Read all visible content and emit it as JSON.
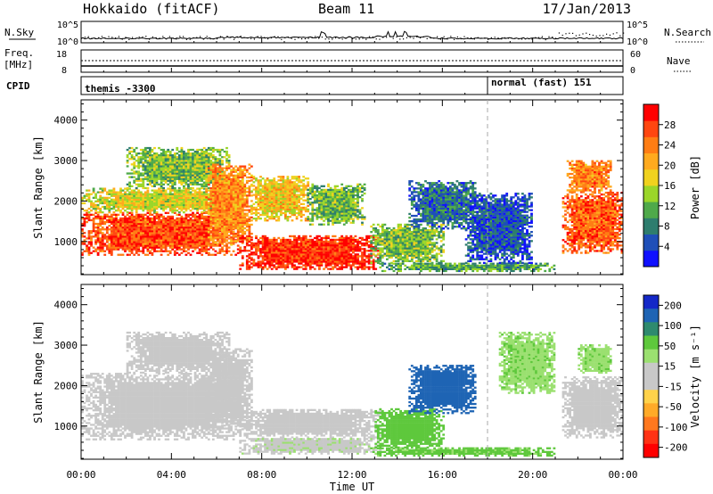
{
  "header": {
    "radar": "Hokkaido (fitACF)",
    "beam": "Beam 11",
    "date": "17/Jan/2013"
  },
  "strips": {
    "noise_left_label": "N.Sky",
    "noise_left_ticks": [
      "10^5",
      "10^0"
    ],
    "noise_right_label": "N.Search",
    "noise_right_ticks": [
      "10^5",
      "10^0"
    ],
    "freq_label_1": "Freq.",
    "freq_label_2": "[MHz]",
    "freq_ticks": [
      "18",
      "8"
    ],
    "nave_label": "Nave",
    "nave_ticks": [
      "60",
      "0"
    ],
    "cpid_label": "CPID",
    "cpid_entries": [
      {
        "text": "themis -3300",
        "hour": 0.0
      },
      {
        "text": "normal (fast) 151",
        "hour": 18.0
      }
    ]
  },
  "axes": {
    "x_label": "Time UT",
    "x_ticks": [
      "00:00",
      "04:00",
      "08:00",
      "12:00",
      "16:00",
      "20:00",
      "00:00"
    ],
    "y_label": "Slant Range [km]",
    "y_ticks": [
      "1000",
      "2000",
      "3000",
      "4000"
    ]
  },
  "colorbars": {
    "power": {
      "label": "Power [dB]",
      "ticks": [
        "4",
        "8",
        "12",
        "16",
        "20",
        "24",
        "28"
      ],
      "colors": [
        "#1010ff",
        "#1f4fb8",
        "#2e7d6e",
        "#4fa94a",
        "#9bd62a",
        "#f0d21e",
        "#ffaa1e",
        "#ff7d14",
        "#ff4610",
        "#ff0000"
      ]
    },
    "velocity": {
      "label": "Velocity [m s⁻¹]",
      "ticks": [
        "200",
        "100",
        "50",
        "15",
        "-15",
        "-50",
        "-100",
        "-200"
      ],
      "colors": [
        "#1428c8",
        "#1e64b4",
        "#2e8a6e",
        "#5ec83c",
        "#9be070",
        "#c8c8c8",
        "#c8c8c8",
        "#ffd24a",
        "#ffaa28",
        "#ff781e",
        "#ff3214",
        "#ff0000"
      ]
    }
  },
  "chart_data": [
    {
      "type": "heatmap",
      "name": "Power",
      "x_range_hours": [
        0,
        24
      ],
      "y_range_km": [
        180,
        4500
      ],
      "cbar_range_db": [
        0,
        32
      ],
      "regions": [
        {
          "t0": 0.0,
          "t1": 7.0,
          "r0": 650,
          "r1": 1700,
          "value": 27
        },
        {
          "t0": 0.0,
          "t1": 7.0,
          "r0": 1700,
          "r1": 2300,
          "value": 17
        },
        {
          "t0": 2.0,
          "t1": 6.5,
          "r0": 2300,
          "r1": 3300,
          "value": 13
        },
        {
          "t0": 5.5,
          "t1": 7.5,
          "r0": 900,
          "r1": 2900,
          "value": 23
        },
        {
          "t0": 7.5,
          "t1": 10.0,
          "r0": 1500,
          "r1": 2600,
          "value": 19
        },
        {
          "t0": 10.0,
          "t1": 12.5,
          "r0": 1400,
          "r1": 2400,
          "value": 12
        },
        {
          "t0": 7.0,
          "t1": 13.2,
          "r0": 300,
          "r1": 1150,
          "value": 29
        },
        {
          "t0": 12.8,
          "t1": 16.0,
          "r0": 450,
          "r1": 1400,
          "value": 13
        },
        {
          "t0": 13.2,
          "t1": 21.0,
          "r0": 250,
          "r1": 450,
          "value": 11
        },
        {
          "t0": 14.5,
          "t1": 17.5,
          "r0": 1300,
          "r1": 2500,
          "value": 7
        },
        {
          "t0": 17.0,
          "t1": 20.0,
          "r0": 450,
          "r1": 2200,
          "value": 5
        },
        {
          "t0": 21.3,
          "t1": 24.0,
          "r0": 700,
          "r1": 2200,
          "value": 26
        },
        {
          "t0": 21.5,
          "t1": 23.5,
          "r0": 2200,
          "r1": 3000,
          "value": 24
        }
      ]
    },
    {
      "type": "heatmap",
      "name": "Velocity",
      "x_range_hours": [
        0,
        24
      ],
      "y_range_km": [
        180,
        4500
      ],
      "cbar_range_ms": [
        -250,
        250
      ],
      "regions": [
        {
          "t0": 0.0,
          "t1": 7.0,
          "r0": 650,
          "r1": 2300,
          "value": 0
        },
        {
          "t0": 2.0,
          "t1": 6.5,
          "r0": 2300,
          "r1": 3300,
          "value": 0
        },
        {
          "t0": 5.5,
          "t1": 7.5,
          "r0": 900,
          "r1": 2900,
          "value": 0
        },
        {
          "t0": 7.0,
          "t1": 13.2,
          "r0": 700,
          "r1": 1400,
          "value": 0
        },
        {
          "t0": 7.0,
          "t1": 13.2,
          "r0": 300,
          "r1": 700,
          "value": 5
        },
        {
          "t0": 12.8,
          "t1": 21.0,
          "r0": 250,
          "r1": 450,
          "value": 60
        },
        {
          "t0": 13.0,
          "t1": 16.0,
          "r0": 450,
          "r1": 1400,
          "value": 70
        },
        {
          "t0": 14.5,
          "t1": 17.5,
          "r0": 1300,
          "r1": 2500,
          "value": 120
        },
        {
          "t0": 18.5,
          "t1": 21.0,
          "r0": 1800,
          "r1": 3300,
          "value": 40
        },
        {
          "t0": 21.3,
          "t1": 24.0,
          "r0": 700,
          "r1": 2200,
          "value": 0
        },
        {
          "t0": 22.0,
          "t1": 23.5,
          "r0": 2300,
          "r1": 3000,
          "value": 40
        }
      ]
    }
  ]
}
